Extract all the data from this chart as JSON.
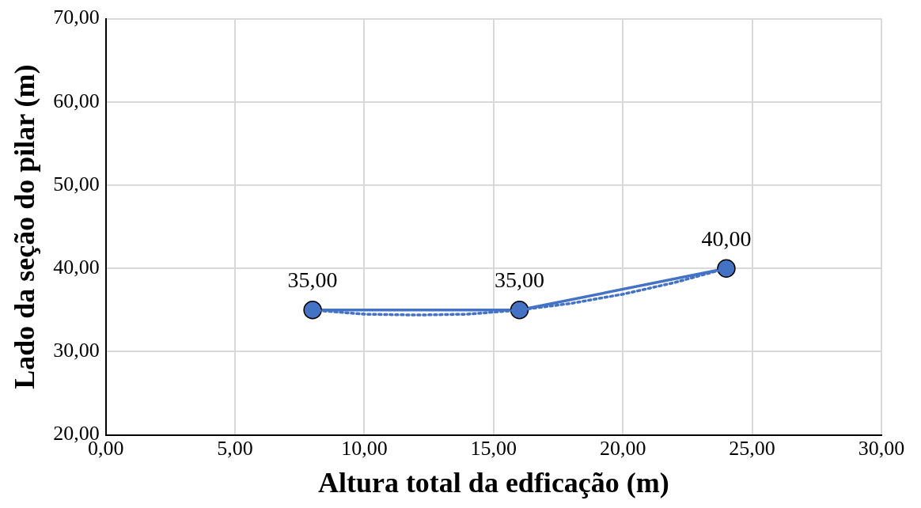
{
  "chart_data": {
    "type": "line",
    "xlabel": "Altura total da edficação (m)",
    "ylabel": "Lado da seção do pilar (m)",
    "xlim": [
      0,
      30
    ],
    "xticks": [
      {
        "value": 0,
        "label": "0,00"
      },
      {
        "value": 5,
        "label": "5,00"
      },
      {
        "value": 10,
        "label": "10,00"
      },
      {
        "value": 15,
        "label": "15,00"
      },
      {
        "value": 20,
        "label": "20,00"
      },
      {
        "value": 25,
        "label": "25,00"
      },
      {
        "value": 30,
        "label": "30,00"
      }
    ],
    "ylim": [
      20,
      70
    ],
    "yticks": [
      {
        "value": 20,
        "label": "20,00"
      },
      {
        "value": 30,
        "label": "30,00"
      },
      {
        "value": 40,
        "label": "40,00"
      },
      {
        "value": 50,
        "label": "50,00"
      },
      {
        "value": 60,
        "label": "60,00"
      },
      {
        "value": 70,
        "label": "70,00"
      }
    ],
    "grid": true,
    "legend": false,
    "series": [
      {
        "color": "#4472c4",
        "marker": "circle",
        "line_style": "solid",
        "x": [
          8,
          16,
          24
        ],
        "values": [
          35,
          35,
          40
        ],
        "value_labels": [
          "35,00",
          "35,00",
          "40,00"
        ]
      },
      {
        "color": "#4472c4",
        "marker": "none",
        "line_style": "dotted",
        "x": [
          8,
          10,
          12,
          14,
          16,
          18,
          20,
          22,
          24
        ],
        "values": [
          35,
          34.5,
          34.4,
          34.5,
          35,
          35.8,
          36.9,
          38.3,
          40
        ]
      }
    ]
  }
}
